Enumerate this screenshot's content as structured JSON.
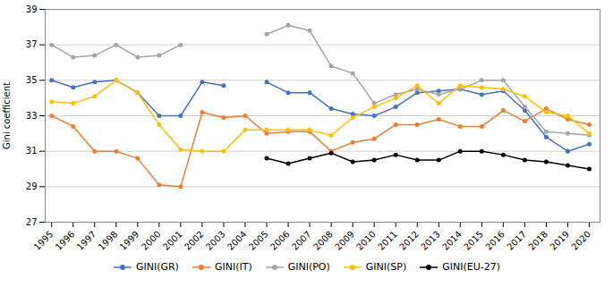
{
  "chart_data": {
    "type": "line",
    "x": [
      1995,
      1996,
      1997,
      1998,
      1999,
      2000,
      2001,
      2002,
      2003,
      2004,
      2005,
      2006,
      2007,
      2008,
      2009,
      2010,
      2011,
      2012,
      2013,
      2014,
      2015,
      2016,
      2017,
      2018,
      2019,
      2020
    ],
    "series": [
      {
        "name": "GINI(GR)",
        "color": "#4472C4",
        "values": [
          35.0,
          34.6,
          34.9,
          35.0,
          34.3,
          33.0,
          33.0,
          34.9,
          34.7,
          null,
          34.9,
          34.3,
          34.3,
          33.4,
          33.1,
          33.0,
          33.5,
          34.3,
          34.4,
          34.5,
          34.2,
          34.4,
          33.3,
          31.8,
          31.0,
          31.4
        ]
      },
      {
        "name": "GINI(IT)",
        "color": "#ED7D31",
        "values": [
          33.0,
          32.4,
          31.0,
          31.0,
          30.6,
          29.1,
          29.0,
          33.2,
          32.9,
          33.0,
          32.0,
          32.1,
          32.1,
          31.0,
          31.5,
          31.7,
          32.5,
          32.5,
          32.8,
          32.4,
          32.4,
          33.3,
          32.7,
          33.4,
          32.8,
          32.5
        ]
      },
      {
        "name": "GINI(PO)",
        "color": "#A5A5A5",
        "values": [
          37.0,
          36.3,
          36.4,
          37.0,
          36.3,
          36.4,
          37.0,
          null,
          null,
          null,
          37.6,
          38.1,
          37.8,
          35.8,
          35.4,
          33.7,
          34.2,
          34.5,
          34.2,
          34.5,
          35.0,
          35.0,
          33.5,
          32.1,
          32.0,
          31.9
        ]
      },
      {
        "name": "GINI(SP)",
        "color": "#FFC000",
        "values": [
          33.8,
          33.7,
          34.1,
          35.0,
          34.3,
          32.5,
          31.1,
          31.0,
          31.0,
          32.2,
          32.2,
          32.2,
          32.2,
          31.9,
          32.9,
          33.5,
          34.0,
          34.7,
          33.7,
          34.7,
          34.6,
          34.5,
          34.1,
          33.2,
          33.0,
          32.0
        ]
      },
      {
        "name": "GINI(EU-27)",
        "color": "#000000",
        "values": [
          null,
          null,
          null,
          null,
          null,
          null,
          null,
          null,
          null,
          null,
          30.6,
          30.3,
          30.6,
          30.9,
          30.4,
          30.5,
          30.8,
          30.5,
          30.5,
          31.0,
          31.0,
          30.8,
          30.5,
          30.4,
          30.2,
          30.0
        ]
      }
    ],
    "ylabel": "Gini coefficient",
    "xlim": [
      1994.7,
      2020.5
    ],
    "xticks": [
      1995,
      1996,
      1997,
      1998,
      1999,
      2000,
      2001,
      2002,
      2003,
      2004,
      2005,
      2006,
      2007,
      2008,
      2009,
      2010,
      2011,
      2012,
      2013,
      2014,
      2015,
      2016,
      2017,
      2018,
      2019,
      2020
    ],
    "ylim": [
      27,
      39
    ],
    "yticks": [
      27,
      29,
      31,
      33,
      35,
      37,
      39
    ],
    "grid": true,
    "legend": "bottom",
    "marker": "circle"
  }
}
